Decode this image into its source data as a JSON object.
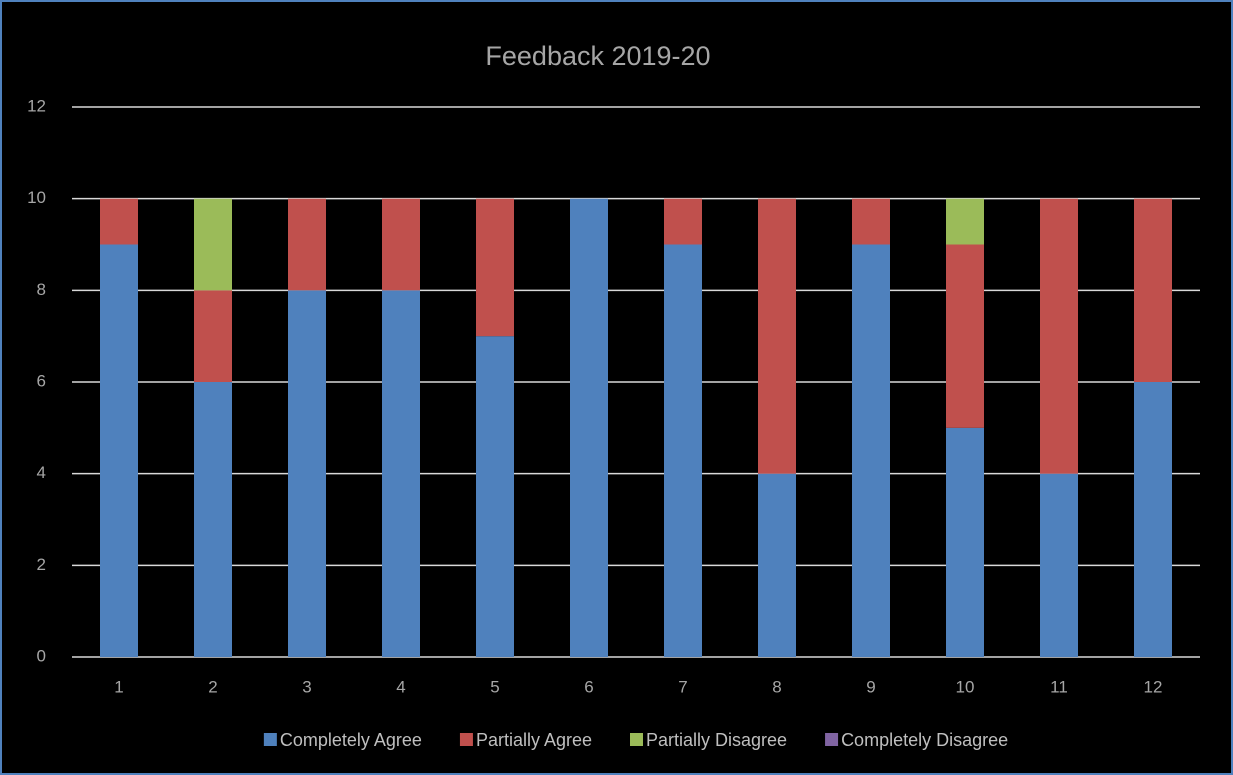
{
  "chart_data": {
    "type": "stacked_bar",
    "title": "Feedback  2019-20",
    "categories": [
      "1",
      "2",
      "3",
      "4",
      "5",
      "6",
      "7",
      "8",
      "9",
      "10",
      "11",
      "12"
    ],
    "series": [
      {
        "name": "Completely Agree",
        "color": "#4f81bd",
        "values": [
          9,
          6,
          8,
          8,
          7,
          10,
          9,
          4,
          9,
          5,
          4,
          6
        ]
      },
      {
        "name": "Partially Agree",
        "color": "#c0504d",
        "values": [
          1,
          2,
          2,
          2,
          3,
          0,
          1,
          6,
          1,
          4,
          6,
          4
        ]
      },
      {
        "name": "Partially Disagree",
        "color": "#9bbb59",
        "values": [
          0,
          2,
          0,
          0,
          0,
          0,
          0,
          0,
          0,
          1,
          0,
          0
        ]
      },
      {
        "name": "Completely Disagree",
        "color": "#8064a2",
        "values": [
          0,
          0,
          0,
          0,
          0,
          0,
          0,
          0,
          0,
          0,
          0,
          0
        ]
      }
    ],
    "ylim": [
      0,
      12
    ],
    "yticks": [
      0,
      2,
      4,
      6,
      8,
      10,
      12
    ],
    "grid": true,
    "legend": "bottom"
  }
}
